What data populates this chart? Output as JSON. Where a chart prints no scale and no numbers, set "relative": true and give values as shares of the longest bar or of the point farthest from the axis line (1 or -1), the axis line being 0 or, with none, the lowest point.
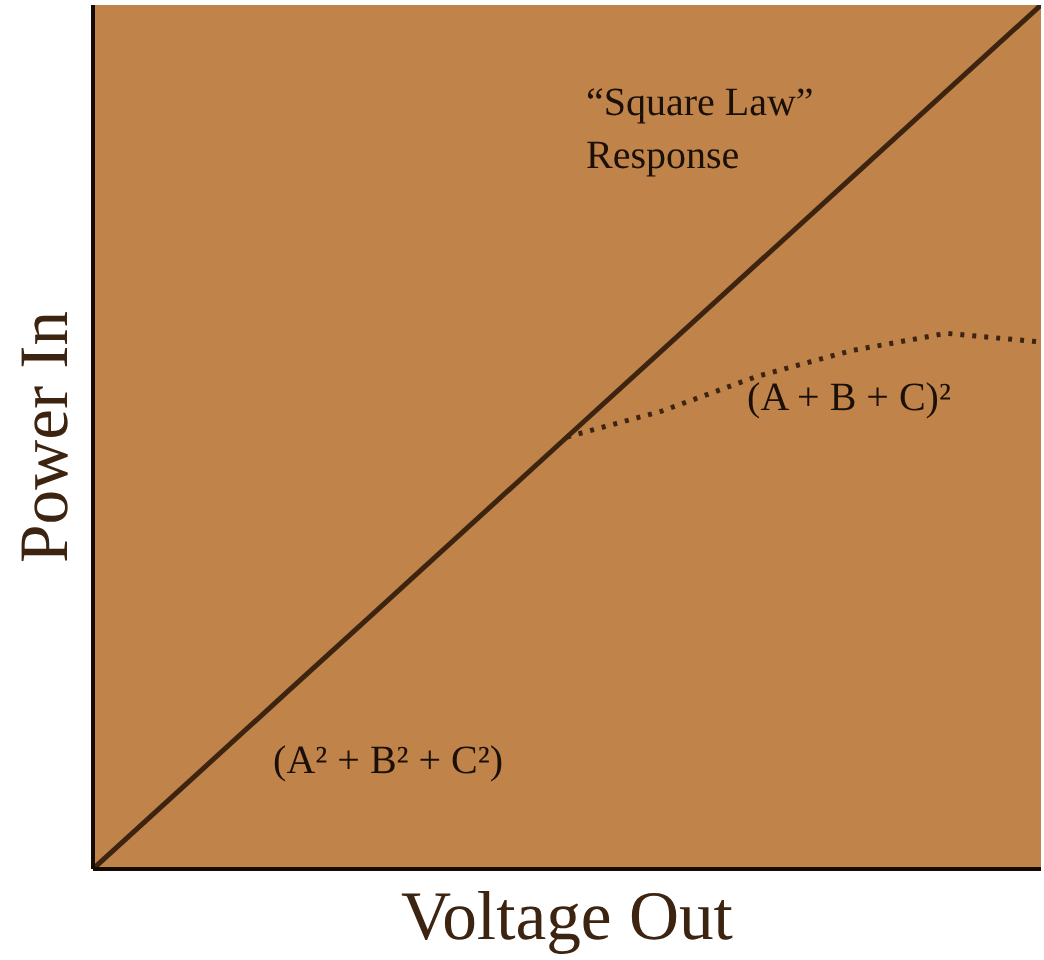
{
  "chart_data": {
    "type": "line",
    "relative": true,
    "xlabel": "Voltage Out",
    "ylabel": "Power In",
    "categories": [
      null,
      null,
      null,
      null,
      null,
      null,
      null,
      null,
      null,
      null,
      null
    ],
    "series": [
      {
        "color": "#3d2410",
        "line_style": "solid",
        "values": [
          0,
          0.1,
          0.2,
          0.3,
          0.4,
          0.5,
          0.6,
          0.7,
          0.8,
          0.9,
          1.0
        ]
      },
      {
        "color": "#3d2410",
        "line_style": "dotted",
        "values": [
          null,
          null,
          null,
          null,
          null,
          0.5,
          0.53,
          0.57,
          0.6,
          0.62,
          0.61
        ]
      }
    ],
    "annotations": [
      "“Square Law”\nResponse",
      "(A + B + C)²",
      "(A² + B² + C²)"
    ],
    "marker": "none"
  }
}
